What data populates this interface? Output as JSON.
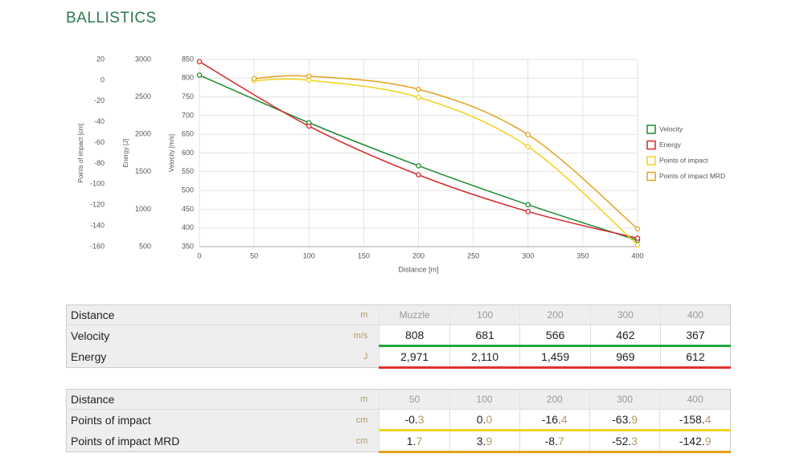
{
  "header": {
    "title": "BALLISTICS"
  },
  "chart_data": {
    "type": "line",
    "x_label": "Distance [m]",
    "xlim": [
      0,
      400
    ],
    "xticks": [
      0,
      50,
      100,
      150,
      200,
      250,
      300,
      350,
      400
    ],
    "y_label": "Velocity [m/s]",
    "ylim": [
      350,
      850
    ],
    "yticks": [
      350,
      400,
      450,
      500,
      550,
      600,
      650,
      700,
      750,
      800,
      850
    ],
    "y2_label": "Energy [J]",
    "y2lim": [
      500,
      3000
    ],
    "y2ticks": [
      500,
      1000,
      1500,
      2000,
      2500,
      3000
    ],
    "y3_label": "Points of impact [cm]",
    "y3lim": [
      -160,
      20
    ],
    "y3ticks": [
      -160,
      -140,
      -120,
      -100,
      -80,
      -60,
      -40,
      -20,
      0,
      20
    ],
    "grid": true,
    "legend": "right",
    "series": [
      {
        "name": "Velocity",
        "color": "#1e8a2e",
        "axis": "y",
        "x": [
          0,
          100,
          200,
          300,
          400
        ],
        "values": [
          808,
          681,
          566,
          462,
          367
        ]
      },
      {
        "name": "Energy",
        "color": "#d42828",
        "axis": "y2",
        "x": [
          0,
          100,
          200,
          300,
          400
        ],
        "values": [
          2971,
          2110,
          1459,
          969,
          612
        ]
      },
      {
        "name": "Points of impact",
        "color": "#f2d21c",
        "axis": "y3",
        "x": [
          50,
          100,
          200,
          300,
          400
        ],
        "values": [
          -0.3,
          0.0,
          -16.4,
          -63.9,
          -158.4
        ]
      },
      {
        "name": "Points of impact MRD",
        "color": "#e3a21a",
        "axis": "y3",
        "x": [
          50,
          100,
          200,
          300,
          400
        ],
        "values": [
          1.7,
          3.9,
          -8.7,
          -52.3,
          -142.9
        ]
      }
    ]
  },
  "tables": [
    {
      "rows": [
        {
          "cells": [
            "Distance",
            "m",
            "Muzzle",
            "100",
            "200",
            "300",
            "400"
          ]
        },
        {
          "cells": [
            "Velocity",
            "m/s",
            "808",
            "681",
            "566",
            "462",
            "367"
          ],
          "accent": "#1ea83a"
        },
        {
          "cells": [
            "Energy",
            "J",
            "2,971",
            "2,110",
            "1,459",
            "969",
            "612"
          ],
          "accent": "#e03030"
        }
      ]
    },
    {
      "rows": [
        {
          "cells": [
            "Distance",
            "m",
            "50",
            "100",
            "200",
            "300",
            "400"
          ]
        },
        {
          "cells": [
            "Points of impact",
            "cm",
            "-0.3",
            "0.0",
            "-16.4",
            "-63.9",
            "-158.4"
          ],
          "accent": "#f2d21c"
        },
        {
          "cells": [
            "Points of impact MRD",
            "cm",
            "1.7",
            "3.9",
            "-8.7",
            "-52.3",
            "-142.9"
          ],
          "accent": "#e3a21a"
        }
      ]
    }
  ]
}
